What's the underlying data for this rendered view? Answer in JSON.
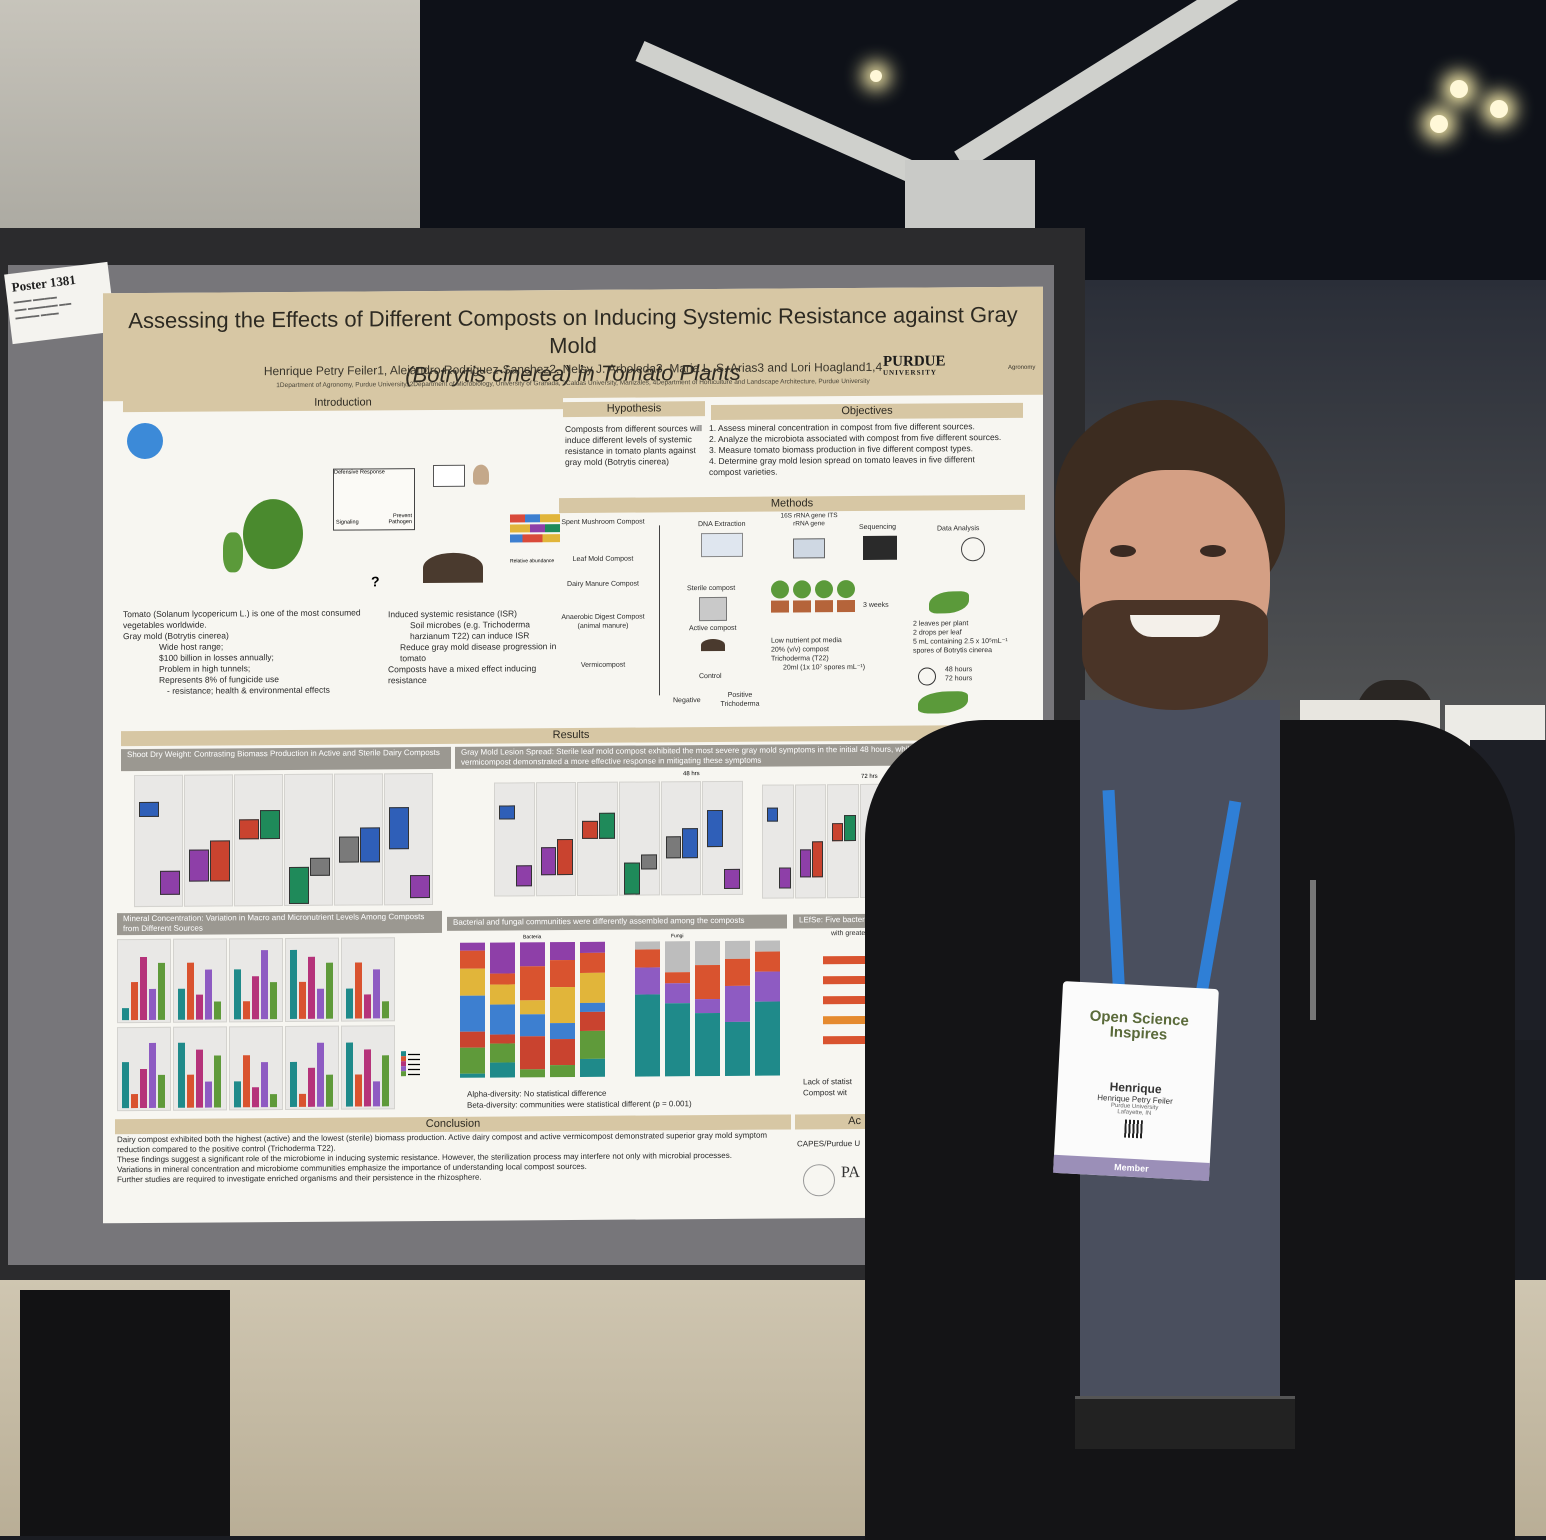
{
  "poster_label": {
    "title": "Poster 1381"
  },
  "poster": {
    "title_line1": "Assessing the Effects of Different Composts on Inducing Systemic Resistance against Gray Mold",
    "title_line2": "(Botrytis cinerea) in Tomato Plants",
    "authors": "Henrique Petry Feiler1, Alejandro Rodriguez-Sanchez2, Nelsy J. Arboleda3, Maria L. S. Arias3 and Lori Hoagland1,4",
    "affiliations": "1Department of Agronomy, Purdue University, 2Department of Microbiology, University of Granada, 3Caldas University, Manizales, 4Department of Horticulture and Landscape Architecture, Purdue University",
    "logo_main": "PURDUE",
    "logo_sub": "UNIVERSITY",
    "logo_side": "Agronomy",
    "sections": {
      "introduction": "Introduction",
      "hypothesis": "Hypothesis",
      "objectives": "Objectives",
      "methods": "Methods",
      "results": "Results",
      "conclusion": "Conclusion"
    },
    "intro_bullets_left": [
      "Tomato (Solanum lycopericum L.) is one of the most consumed vegetables worldwide.",
      "Gray mold (Botrytis cinerea)",
      "Wide host range;",
      "$100 billion in losses annually;",
      "Problem in high tunnels;",
      "Represents 8% of fungicide use",
      "- resistance; health & environmental effects"
    ],
    "intro_bullets_right": [
      "Induced systemic resistance (ISR)",
      "Soil microbes (e.g. Trichoderma harzianum T22) can induce ISR",
      "Reduce gray mold disease progression in tomato",
      "Composts have a mixed effect inducing resistance"
    ],
    "intro_diagram": {
      "defensive": "Defensive Response",
      "signaling": "Signaling",
      "prevent": "Prevent Pathogen",
      "abundance": "Relative abundance",
      "question": "?"
    },
    "hypothesis_text": "Composts from different sources will induce different levels of systemic resistance in tomato plants against gray mold (Botrytis cinerea)",
    "objectives": [
      "1.      Assess mineral concentration in compost from five different sources.",
      "2.      Analyze the microbiota associated with compost from five different sources.",
      "3.      Measure tomato biomass production in five different compost types.",
      "4.      Determine gray mold lesion spread on tomato leaves in five different compost varieties."
    ],
    "methods": {
      "composts": [
        "Spent Mushroom Compost",
        "Leaf Mold Compost",
        "Dairy Manure Compost",
        "Anaerobic Digest Compost (animal manure)",
        "Vermicompost"
      ],
      "dna": "DNA Extraction",
      "genes": "16S rRNA gene ITS rRNA gene",
      "sequencing": "Sequencing",
      "analysis": "Data Analysis",
      "sterile": "Sterile compost",
      "active": "Active compost",
      "weeks": "3 weeks",
      "pot": [
        "Low nutrient pot media",
        "20% (v/v) compost",
        "Trichoderma (T22)",
        "20ml (1x 10⁷ spores mL⁻¹)"
      ],
      "leaves": [
        "2 leaves per plant",
        "2 drops per leaf",
        "5 mL containing 2.5 x 10⁵mL⁻¹ spores of Botrytis cinerea"
      ],
      "hours": [
        "48 hours",
        "72 hours"
      ],
      "control": "Control",
      "negative": "Negative",
      "positive": "Positive Trichoderma"
    },
    "results": {
      "shoot_title": "Shoot Dry Weight: Contrasting Biomass Production in Active and Sterile Dairy Composts",
      "lesion_title": "Gray Mold Lesion Spread: Sterile leaf mold compost exhibited the most severe gray mold symptoms in the initial 48 hours, while active dairy compost and vermicompost demonstrated a more effective response in mitigating these symptoms",
      "lesion_48": "48 hrs",
      "lesion_72": "72 hrs",
      "mineral_title": "Mineral Concentration: Variation in Macro and Micronutrient Levels Among Composts from Different Sources",
      "bact_title": "Bacterial and fungal communities were differently assembled among the composts",
      "lefse_title": "LEfSe: Five bacterial g",
      "lefse_title2": "with greater",
      "alpha": "Alpha-diversity: No statistical difference",
      "beta": "Beta-diversity: communities were statistical different (p = 0.001)",
      "lack": "Lack of statist",
      "compost_with": "Compost wit",
      "bacteria_label": "Bacteria",
      "fungi_label": "Fungi"
    },
    "conclusion_bullets": [
      "Dairy compost exhibited both the highest (active) and the lowest (sterile) biomass production. Active dairy compost and active vermicompost demonstrated superior gray mold symptom reduction compared to the positive control (Trichoderma T22).",
      "These findings suggest a significant role of the microbiome in inducing systemic resistance. However, the sterilization process may interfere not only with microbial processes.",
      "Variations in mineral concentration and microbiome communities emphasize the importance of understanding local compost sources.",
      "Further studies are required to investigate enriched organisms and their persistence in the rhizosphere."
    ],
    "ack_partial": "Ac",
    "ack_text": "CAPES/Purdue U",
    "footer_logo": "PA"
  },
  "badge": {
    "conference": "Open Science Inspires",
    "first_name": "Henrique",
    "full_name": "Henrique Petry Feiler",
    "org": "Purdue University",
    "location": "Lafayette, IN",
    "role": "Member"
  },
  "colors": {
    "poster_header": "#d7c7a4",
    "compost_palette": [
      "#2f5fb8",
      "#8e3fa8",
      "#c9432f",
      "#1f8a5a",
      "#7a7a7a"
    ],
    "lanyard": "#2f7fd6",
    "jacket": "#141416"
  }
}
